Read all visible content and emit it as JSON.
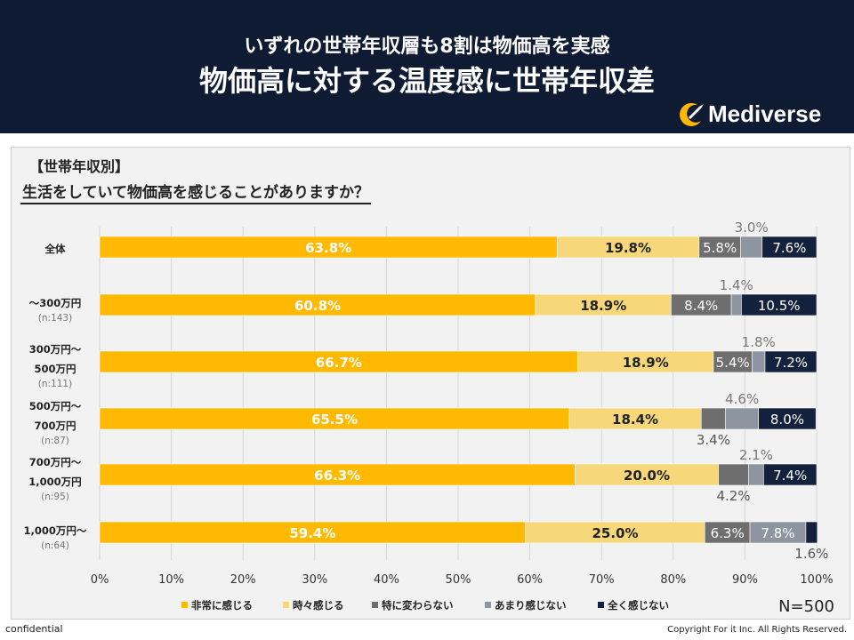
{
  "header": {
    "subtitle": "いずれの世帯年収層も8割は物価高を実感",
    "title": "物価高に対する温度感に世帯年収差",
    "logo_text": "Mediverse"
  },
  "panel": {
    "tag": "【世帯年収別】",
    "question": "生活をしていて物価高を感じることがありますか？"
  },
  "sample_size": "N=500",
  "footer": {
    "left": "confidential",
    "right": "Copyright For it Inc. All Rights Reserved."
  },
  "colors": {
    "very": "#ffb900",
    "sometimes": "#f6d77a",
    "notchange": "#6e6e6e",
    "notmuch": "#8c95a0",
    "notatall": "#14213d"
  },
  "chart_data": {
    "type": "bar",
    "orientation": "horizontal",
    "stacked": true,
    "xlim": [
      0,
      100
    ],
    "x_ticks": [
      "0%",
      "10%",
      "20%",
      "30%",
      "40%",
      "50%",
      "60%",
      "70%",
      "80%",
      "90%",
      "100%"
    ],
    "grid": true,
    "legend_position": "bottom",
    "categories": [
      {
        "label": [
          "全体"
        ],
        "n": ""
      },
      {
        "label": [
          "～300万円"
        ],
        "n": "(n:143)"
      },
      {
        "label": [
          "300万円～",
          "500万円"
        ],
        "n": "(n:111)"
      },
      {
        "label": [
          "500万円～",
          "700万円"
        ],
        "n": "(n:87)"
      },
      {
        "label": [
          "700万円～",
          "1,000万円"
        ],
        "n": "(n:95)"
      },
      {
        "label": [
          "1,000万円～"
        ],
        "n": "(n:64)"
      }
    ],
    "series": [
      {
        "name": "非常に感じる",
        "color_key": "very",
        "values": [
          63.8,
          60.8,
          66.7,
          65.5,
          66.3,
          59.4
        ]
      },
      {
        "name": "時々感じる",
        "color_key": "sometimes",
        "values": [
          19.8,
          18.9,
          18.9,
          18.4,
          20.0,
          25.0
        ]
      },
      {
        "name": "特に変わらない",
        "color_key": "notchange",
        "values": [
          5.8,
          8.4,
          5.4,
          3.4,
          4.2,
          6.3
        ]
      },
      {
        "name": "あまり感じない",
        "color_key": "notmuch",
        "values": [
          3.0,
          1.4,
          1.8,
          4.6,
          2.1,
          7.8
        ]
      },
      {
        "name": "全く感じない",
        "color_key": "notatall",
        "values": [
          7.6,
          10.5,
          7.2,
          8.0,
          7.4,
          1.6
        ]
      }
    ],
    "outside_labels": [
      {
        "row": 0,
        "series": 3,
        "side": "above"
      },
      {
        "row": 1,
        "series": 3,
        "side": "above"
      },
      {
        "row": 2,
        "series": 3,
        "side": "above"
      },
      {
        "row": 3,
        "series": 3,
        "side": "above"
      },
      {
        "row": 3,
        "series": 2,
        "side": "below"
      },
      {
        "row": 4,
        "series": 3,
        "side": "above"
      },
      {
        "row": 4,
        "series": 2,
        "side": "below"
      },
      {
        "row": 5,
        "series": 4,
        "side": "below"
      }
    ]
  }
}
